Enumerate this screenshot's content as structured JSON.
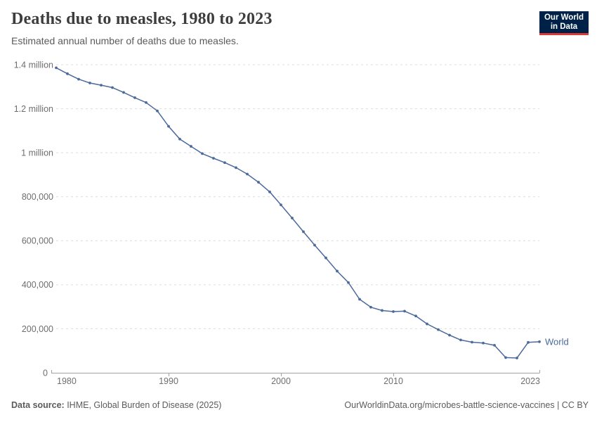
{
  "header": {
    "title": "Deaths due to measles, 1980 to 2023",
    "subtitle": "Estimated annual number of deaths due to measles.",
    "logo": {
      "line1": "Our World",
      "line2": "in Data",
      "bg_color": "#002147",
      "accent_color": "#d93a35"
    }
  },
  "chart_data": {
    "type": "line",
    "title": "Deaths due to measles, 1980 to 2023",
    "xlabel": "",
    "ylabel": "",
    "xlim": [
      1980,
      2023
    ],
    "ylim": [
      0,
      1400000
    ],
    "grid": "horizontal-dashed",
    "legend_position": "end-of-line",
    "x_ticks": [
      {
        "value": 1980,
        "label": "1980"
      },
      {
        "value": 1990,
        "label": "1990"
      },
      {
        "value": 2000,
        "label": "2000"
      },
      {
        "value": 2010,
        "label": "2010"
      },
      {
        "value": 2023,
        "label": "2023"
      }
    ],
    "y_ticks": [
      {
        "value": 0,
        "label": "0"
      },
      {
        "value": 200000,
        "label": "200,000"
      },
      {
        "value": 400000,
        "label": "400,000"
      },
      {
        "value": 600000,
        "label": "600,000"
      },
      {
        "value": 800000,
        "label": "800,000"
      },
      {
        "value": 1000000,
        "label": "1 million"
      },
      {
        "value": 1200000,
        "label": "1.2 million"
      },
      {
        "value": 1400000,
        "label": "1.4 million"
      }
    ],
    "series": [
      {
        "name": "World",
        "color": "#4c6a9c",
        "x": [
          1980,
          1981,
          1982,
          1983,
          1984,
          1985,
          1986,
          1987,
          1988,
          1989,
          1990,
          1991,
          1992,
          1993,
          1994,
          1995,
          1996,
          1997,
          1998,
          1999,
          2000,
          2001,
          2002,
          2003,
          2004,
          2005,
          2006,
          2007,
          2008,
          2009,
          2010,
          2011,
          2012,
          2013,
          2014,
          2015,
          2016,
          2017,
          2018,
          2019,
          2020,
          2021,
          2022,
          2023
        ],
        "values": [
          1386000,
          1359000,
          1334000,
          1317000,
          1307000,
          1296000,
          1274000,
          1250000,
          1228000,
          1190000,
          1120000,
          1062000,
          1029000,
          996000,
          975000,
          955000,
          932000,
          903000,
          866000,
          822000,
          763000,
          703000,
          641000,
          580000,
          522000,
          462000,
          410000,
          334000,
          298000,
          283000,
          278000,
          280000,
          258000,
          222000,
          196000,
          171000,
          149000,
          139000,
          135000,
          125000,
          69000,
          67000,
          138000,
          141000
        ]
      }
    ],
    "colors": {
      "gridline": "#dcdcdc",
      "axis_line": "#a3a3a3",
      "tick_label": "#6e6e6e"
    }
  },
  "footer": {
    "datasource_label": "Data source:",
    "datasource_value": " IHME, Global Burden of Disease (2025)",
    "link": "OurWorldinData.org/microbes-battle-science-vaccines | CC BY"
  }
}
